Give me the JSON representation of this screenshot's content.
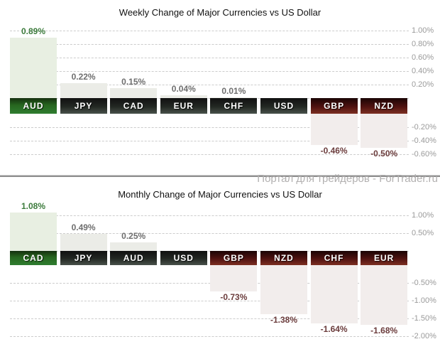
{
  "watermark": {
    "text": "Портал для трейдеров - ForTrader.ru"
  },
  "colors": {
    "leader_bar": "#e8efe2",
    "positive_bar": "#ebece7",
    "negative_bar": "#f2edec",
    "leader_value_text": "#3c7b3c",
    "positive_value_text": "#6e6e6e",
    "negative_value_text": "#6b3c3c",
    "grid": "#cccccc",
    "axis_label": "#9a9a9a",
    "box_green": "#2f7d30",
    "box_dark": "#2f352f",
    "box_red": "#5c1a14",
    "watermark": "#b2b0b0"
  },
  "chart_data": [
    {
      "type": "bar",
      "title": "Weekly Change of Major Currencies vs US Dollar",
      "categories": [
        "AUD",
        "JPY",
        "CAD",
        "EUR",
        "CHF",
        "USD",
        "GBP",
        "NZD"
      ],
      "values": [
        0.89,
        0.22,
        0.15,
        0.04,
        0.01,
        0,
        -0.46,
        -0.5
      ],
      "value_labels": [
        "0.89%",
        "0.22%",
        "0.15%",
        "0.04%",
        "0.01%",
        "",
        "-0.46%",
        "-0.50%"
      ],
      "tones": [
        "green",
        "dark",
        "dark",
        "dark",
        "dark",
        "dark",
        "red",
        "red"
      ],
      "yticks": [
        1.0,
        0.8,
        0.6,
        0.4,
        0.2,
        -0.2,
        -0.4,
        -0.6
      ],
      "ytick_labels": [
        "1.00%",
        "0.80%",
        "0.60%",
        "0.40%",
        "0.20%",
        "-0.20%",
        "-0.40%",
        "-0.60%"
      ],
      "ylim": [
        -0.7,
        1.1
      ],
      "grid": "dashed",
      "zero_line": true,
      "axis_side": "right",
      "xlabel": "",
      "ylabel": ""
    },
    {
      "type": "bar",
      "title": "Monthly Change of Major Currencies vs US Dollar",
      "categories": [
        "CAD",
        "JPY",
        "AUD",
        "USD",
        "GBP",
        "NZD",
        "CHF",
        "EUR"
      ],
      "values": [
        1.08,
        0.49,
        0.25,
        0,
        -0.73,
        -1.38,
        -1.64,
        -1.68
      ],
      "value_labels": [
        "1.08%",
        "0.49%",
        "0.25%",
        "",
        "-0.73%",
        "-1.38%",
        "-1.64%",
        "-1.68%"
      ],
      "tones": [
        "green",
        "dark",
        "dark",
        "dark",
        "red",
        "red",
        "red",
        "red"
      ],
      "yticks": [
        1.0,
        0.5,
        -0.5,
        -1.0,
        -1.5,
        -2.0
      ],
      "ytick_labels": [
        "1.00%",
        "0.50%",
        "-0.50%",
        "-1.00%",
        "-1.50%",
        "-2.00%"
      ],
      "ylim": [
        -2.1,
        1.2
      ],
      "grid": "dashed",
      "zero_line": true,
      "axis_side": "right",
      "xlabel": "",
      "ylabel": ""
    }
  ]
}
